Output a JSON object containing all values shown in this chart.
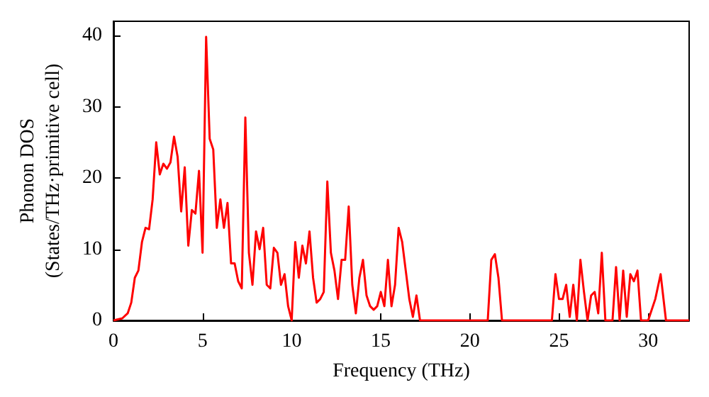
{
  "chart_data": {
    "type": "line",
    "xlabel": "Frequency (THz)",
    "ylabel": "Phonon DOS\n(States/THz·primitive cell)",
    "xlim": [
      0,
      32.3
    ],
    "ylim": [
      0,
      42
    ],
    "xticks": [
      0,
      5,
      10,
      15,
      20,
      25,
      30
    ],
    "yticks": [
      0,
      10,
      20,
      30,
      40
    ],
    "grid": false,
    "marker": "none",
    "line_style": "solid",
    "x": [
      0,
      0.5,
      0.8,
      1.0,
      1.2,
      1.4,
      1.6,
      1.8,
      2.0,
      2.2,
      2.4,
      2.6,
      2.8,
      3.0,
      3.2,
      3.4,
      3.6,
      3.8,
      4.0,
      4.2,
      4.4,
      4.6,
      4.8,
      5.0,
      5.2,
      5.4,
      5.6,
      5.8,
      6.0,
      6.2,
      6.4,
      6.6,
      6.8,
      7.0,
      7.2,
      7.4,
      7.6,
      7.8,
      8.0,
      8.2,
      8.4,
      8.6,
      8.8,
      9.0,
      9.2,
      9.4,
      9.6,
      9.8,
      10.0,
      10.2,
      10.4,
      10.6,
      10.8,
      11.0,
      11.2,
      11.4,
      11.6,
      11.8,
      12.0,
      12.2,
      12.4,
      12.6,
      12.8,
      13.0,
      13.2,
      13.4,
      13.6,
      13.8,
      14.0,
      14.2,
      14.4,
      14.6,
      14.8,
      15.0,
      15.2,
      15.4,
      15.6,
      15.8,
      16.0,
      16.2,
      16.4,
      16.6,
      16.8,
      17.0,
      17.2,
      21.0,
      21.2,
      21.4,
      21.6,
      21.8,
      24.6,
      24.8,
      25.0,
      25.2,
      25.4,
      25.6,
      25.8,
      26.0,
      26.2,
      26.4,
      26.6,
      26.8,
      27.0,
      27.2,
      27.4,
      27.6,
      28.0,
      28.2,
      28.4,
      28.6,
      28.8,
      29.0,
      29.2,
      29.4,
      29.6,
      30.0,
      30.4,
      30.7,
      31.0,
      32.3
    ],
    "series": [
      {
        "color": "#ff0000",
        "values": [
          0,
          0.3,
          1,
          2.5,
          6,
          7,
          11,
          13,
          12.8,
          17,
          25,
          20.5,
          22,
          21.3,
          22.2,
          25.8,
          23,
          15.3,
          21.5,
          10.5,
          15.5,
          15,
          21,
          9.5,
          39.8,
          25.5,
          24,
          13,
          17,
          13,
          16.5,
          8,
          8,
          5.5,
          4.5,
          28.5,
          9.5,
          5,
          12.5,
          10,
          13,
          5,
          4.5,
          10.2,
          9.5,
          5,
          6.5,
          2,
          0,
          11,
          6,
          10.5,
          8,
          12.5,
          6,
          2.5,
          3,
          4,
          19.5,
          9.5,
          7,
          3,
          8.5,
          8.5,
          16,
          5,
          1,
          6,
          8.5,
          3.5,
          2,
          1.5,
          2,
          4,
          2,
          8.5,
          2,
          5,
          13,
          11,
          7,
          3,
          0.5,
          3.5,
          0,
          0,
          8.5,
          9.3,
          6,
          0,
          0,
          6.5,
          3,
          3,
          5,
          0.5,
          5,
          0,
          8.5,
          4,
          0,
          3.5,
          4,
          1,
          9.5,
          0,
          0,
          7.5,
          0,
          7,
          0.5,
          6.5,
          5.5,
          7,
          0,
          0,
          3,
          6.5,
          0,
          0
        ]
      }
    ]
  }
}
